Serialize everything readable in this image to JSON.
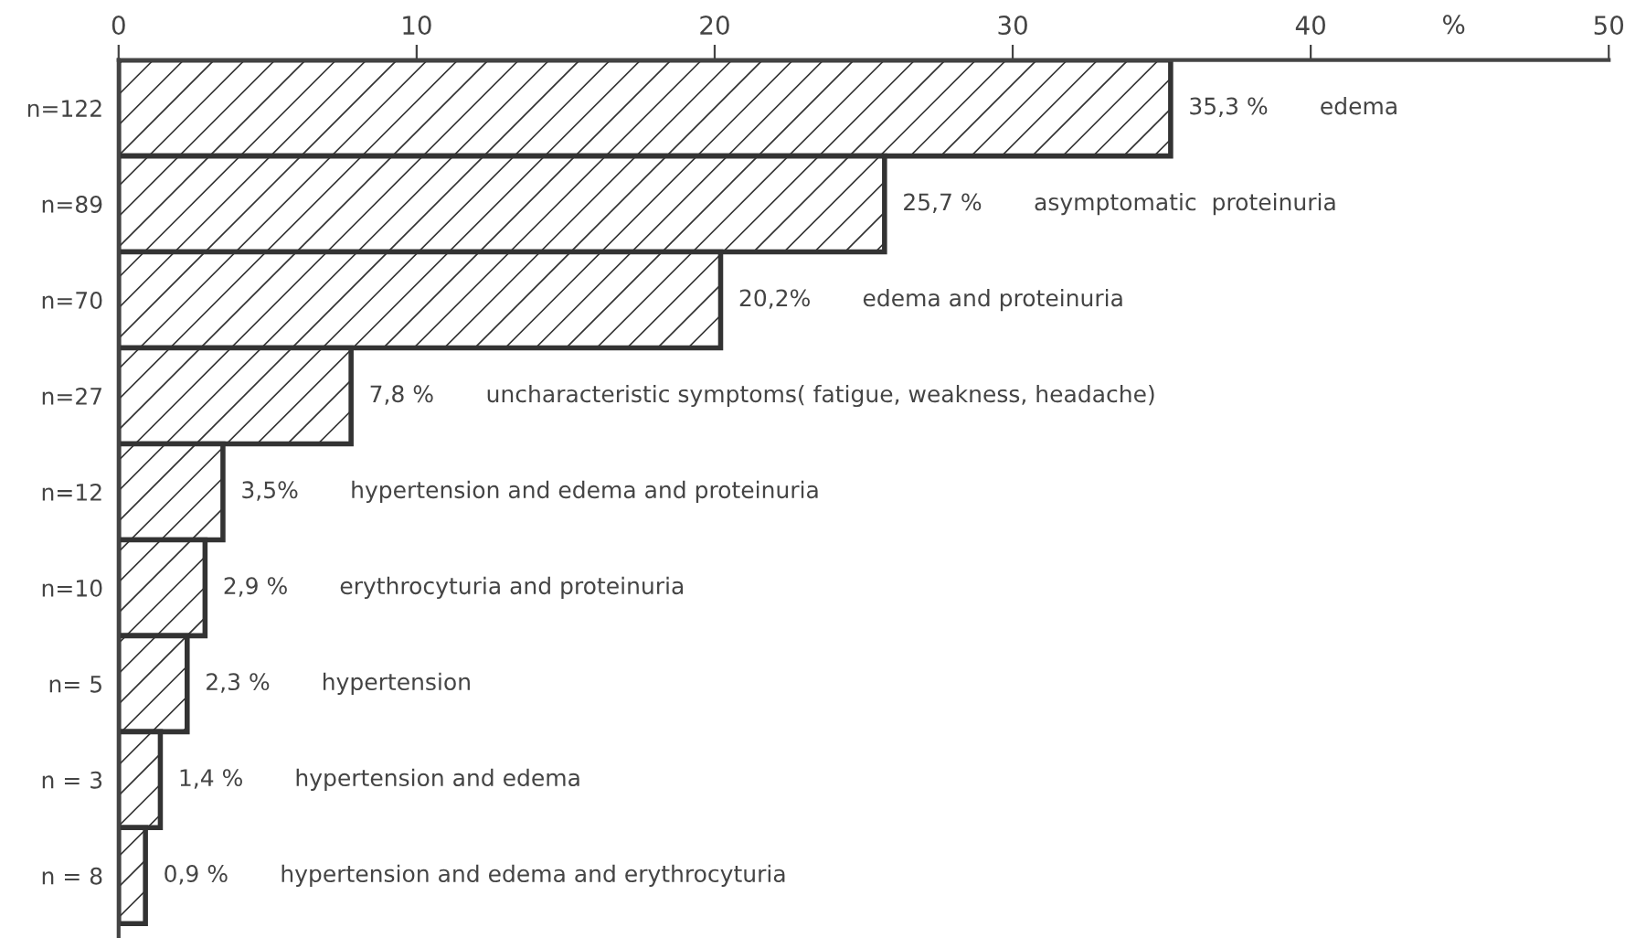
{
  "chart_data": {
    "type": "bar",
    "orientation": "horizontal",
    "xlabel": "%",
    "categories": [
      "n=122",
      "n=89",
      "n=70",
      "n=27",
      "n=12",
      "n=10",
      "n= 5",
      "n = 3",
      "n = 8"
    ],
    "values": [
      35.3,
      25.7,
      20.2,
      7.8,
      3.5,
      2.9,
      2.3,
      1.4,
      0.9
    ],
    "value_labels": [
      "35,3 %",
      "25,7 %",
      "20,2%",
      "7,8 %",
      "3,5%",
      "2,9 %",
      "2,3 %",
      "1,4 %",
      "0,9 %"
    ],
    "color": "#333333",
    "xlim": [
      0,
      50
    ],
    "xticks": [
      0,
      10,
      20,
      30,
      40,
      50
    ],
    "grid": false,
    "annotations": [
      "edema",
      "asymptomatic  proteinuria",
      "edema and proteinuria",
      "uncharacteristic symptoms( fatigue, weakness, headache)",
      "hypertension and edema and proteinuria",
      "erythrocyturia and proteinuria",
      "hypertension",
      "hypertension and edema",
      "hypertension and edema and erythrocyturia"
    ]
  }
}
